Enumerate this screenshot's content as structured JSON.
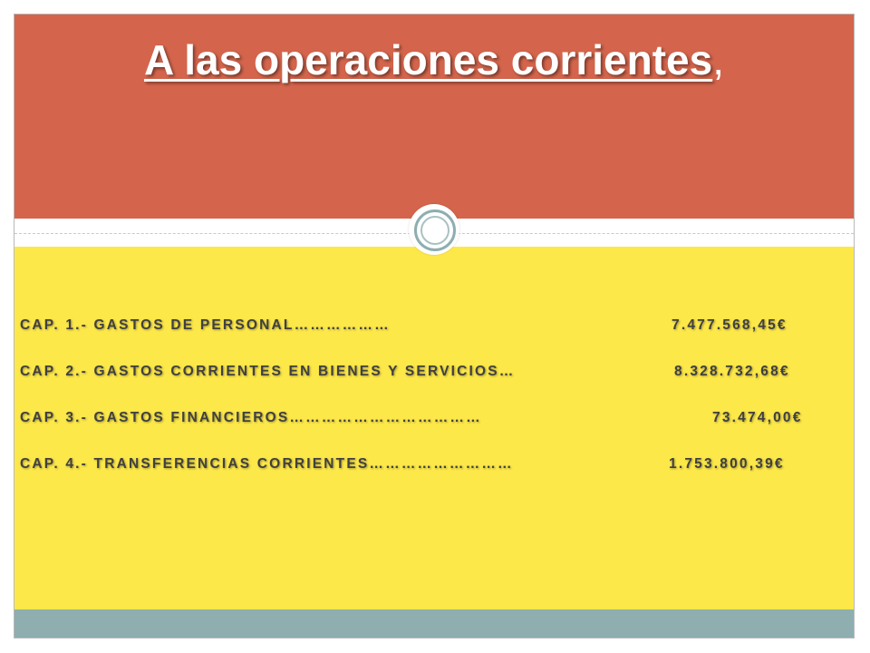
{
  "title": {
    "main": "A las operaciones corrientes",
    "suffix": ","
  },
  "items": [
    {
      "label": "CAP. 1.- GASTOS DE PERSONAL………………",
      "amount": "7.477.568,45€"
    },
    {
      "label": "CAP. 2.- GASTOS CORRIENTES EN BIENES Y SERVICIOS…",
      "amount": "8.328.732,68€"
    },
    {
      "label": "CAP. 3.- GASTOS FINANCIEROS………………………………",
      "amount": "73.474,00€"
    },
    {
      "label": "CAP. 4.- TRANSFERENCIAS CORRIENTES………………………",
      "amount": "1.753.800,39€"
    }
  ],
  "colors": {
    "title_band": "#d4654c",
    "content_band": "#fde84a",
    "footer_band": "#8eaeb0",
    "text": "#404040"
  }
}
